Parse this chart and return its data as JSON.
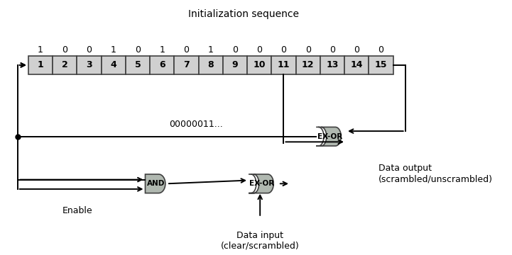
{
  "title": "Initialization sequence",
  "init_bits": [
    1,
    0,
    0,
    1,
    0,
    1,
    0,
    1,
    0,
    0,
    0,
    0,
    0,
    0,
    0
  ],
  "register_labels": [
    "1",
    "2",
    "3",
    "4",
    "5",
    "6",
    "7",
    "8",
    "9",
    "10",
    "11",
    "12",
    "13",
    "14",
    "15"
  ],
  "feedback_text": "00000011...",
  "enable_text": "Enable",
  "data_input_text": "Data input\n(clear/scrambled)",
  "data_output_text": "Data output\n(scrambled/unscrambled)",
  "and_label": "AND",
  "exor1_label": "EX-OR",
  "exor2_label": "EX-OR",
  "bg_color": "#ffffff",
  "box_fill": "#d0d0d0",
  "box_edge": "#404040",
  "line_color": "#000000",
  "text_color": "#000000",
  "font_size": 9,
  "title_font_size": 10
}
